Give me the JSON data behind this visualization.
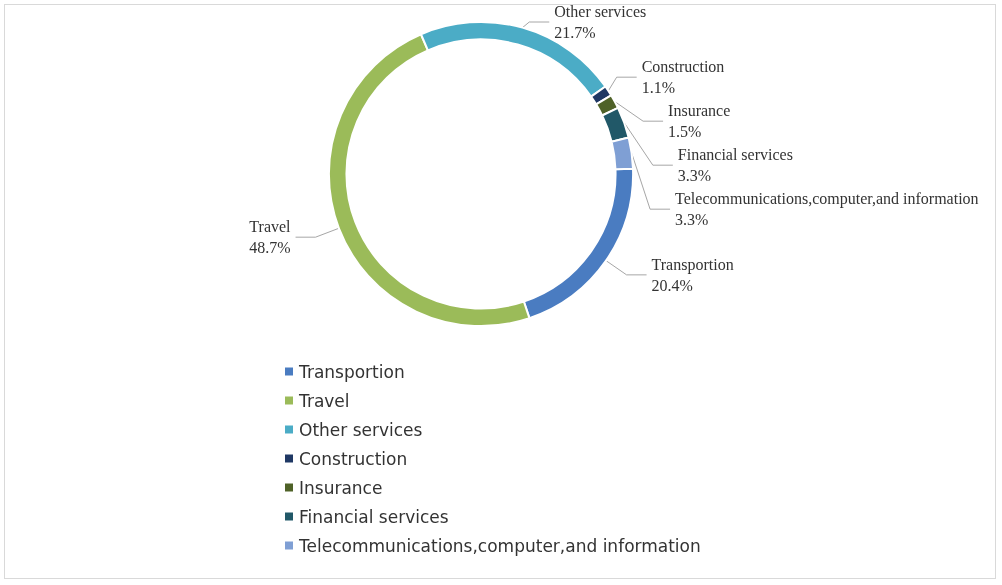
{
  "chart_data": {
    "type": "donut",
    "categories": [
      "Transportion",
      "Travel",
      "Other services",
      "Construction",
      "Insurance",
      "Financial services",
      "Telecommunications,computer,and information"
    ],
    "values": [
      20.4,
      48.7,
      21.7,
      1.1,
      1.5,
      3.3,
      3.3
    ],
    "value_labels": [
      "20.4%",
      "48.7%",
      "21.7%",
      "1.1%",
      "1.5%",
      "3.3%",
      "3.3%"
    ],
    "colors": [
      "#4a7cc1",
      "#9bbb59",
      "#4bacc6",
      "#1f3864",
      "#4f6228",
      "#215868",
      "#7f9fd4"
    ],
    "legend": "bottom"
  }
}
